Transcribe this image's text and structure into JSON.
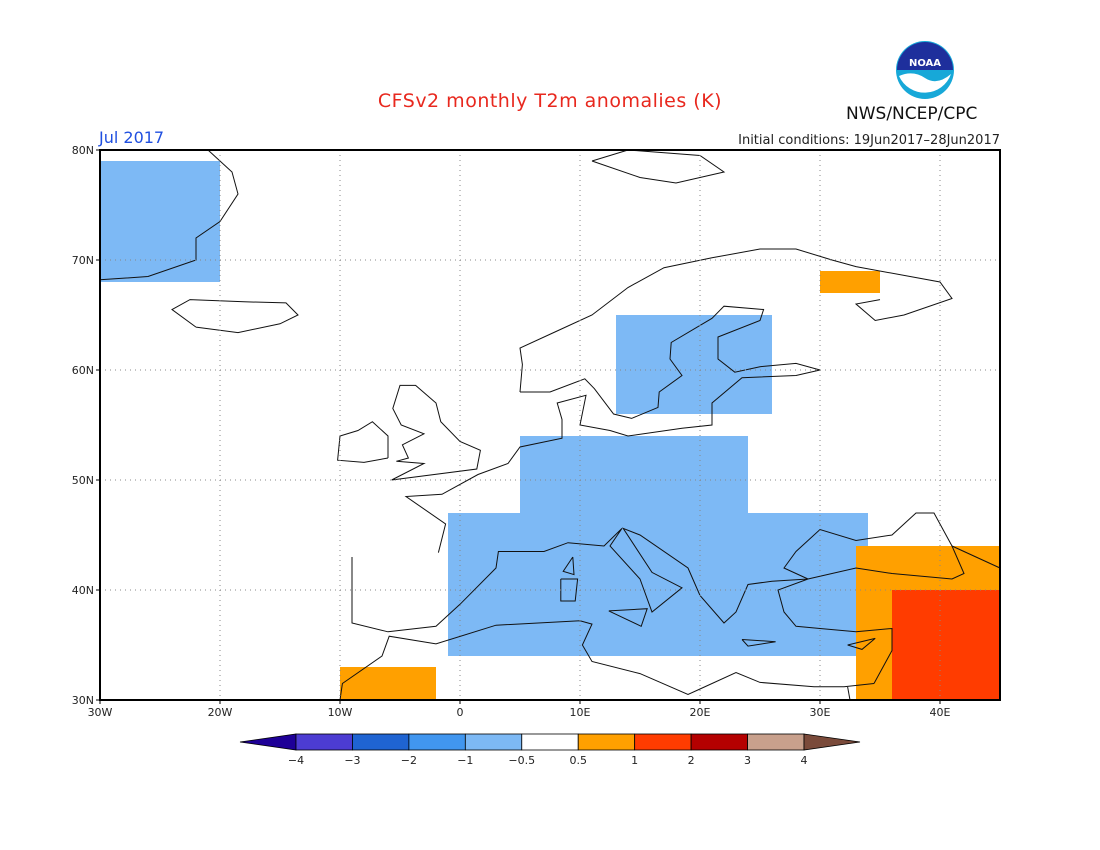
{
  "title": "CFSv2 monthly T2m anomalies (K)",
  "month_label": "Jul 2017",
  "initial_conditions": "Initial conditions: 19Jun2017–28Jun2017",
  "agency": "NWS/NCEP/CPC",
  "logo_text": "NOAA",
  "map": {
    "lon_range": [
      -30,
      45
    ],
    "lat_range": [
      30,
      80
    ],
    "lon_ticks": [
      {
        "value": -30,
        "label": "30W"
      },
      {
        "value": -20,
        "label": "20W"
      },
      {
        "value": -10,
        "label": "10W"
      },
      {
        "value": 0,
        "label": "0"
      },
      {
        "value": 10,
        "label": "10E"
      },
      {
        "value": 20,
        "label": "20E"
      },
      {
        "value": 30,
        "label": "30E"
      },
      {
        "value": 40,
        "label": "40E"
      }
    ],
    "lat_ticks": [
      {
        "value": 30,
        "label": "30N"
      },
      {
        "value": 40,
        "label": "40N"
      },
      {
        "value": 50,
        "label": "50N"
      },
      {
        "value": 60,
        "label": "60N"
      },
      {
        "value": 70,
        "label": "70N"
      },
      {
        "value": 80,
        "label": "80N"
      }
    ],
    "gridlines": "dotted"
  },
  "colorbar": {
    "labels": [
      "−4",
      "−3",
      "−2",
      "−1",
      "−0.5",
      "0.5",
      "1",
      "2",
      "3",
      "4"
    ],
    "colors": [
      "#1e0097",
      "#4c3cd2",
      "#1f64d2",
      "#4196ef",
      "#7db9f5",
      "#ffffff",
      "#ffa000",
      "#ff3c00",
      "#b40000",
      "#c8a08c",
      "#7a4a3a"
    ]
  },
  "anomaly_regions": [
    {
      "class": -1,
      "color": "#7db9f5",
      "lon": [
        -1,
        34
      ],
      "lat": [
        34,
        47
      ],
      "desc": "central/southern Europe & Mediterranean"
    },
    {
      "class": -1,
      "color": "#7db9f5",
      "lon": [
        5,
        24
      ],
      "lat": [
        45,
        54
      ],
      "desc": "central Europe"
    },
    {
      "class": -1,
      "color": "#7db9f5",
      "lon": [
        -30,
        -20
      ],
      "lat": [
        68,
        79
      ],
      "desc": "Greenland coast"
    },
    {
      "class": -1,
      "color": "#7db9f5",
      "lon": [
        13,
        26
      ],
      "lat": [
        56,
        65
      ],
      "desc": "Scandinavia"
    },
    {
      "class": 1,
      "color": "#ffa000",
      "lon": [
        33,
        45
      ],
      "lat": [
        30,
        44
      ],
      "desc": "Turkey, Middle East"
    },
    {
      "class": 1,
      "color": "#ffa000",
      "lon": [
        -10,
        -2
      ],
      "lat": [
        30,
        33
      ],
      "desc": "Morocco"
    },
    {
      "class": 1,
      "color": "#ffa000",
      "lon": [
        30,
        35
      ],
      "lat": [
        67,
        69
      ],
      "desc": "Kola"
    },
    {
      "class": 2,
      "color": "#ff3c00",
      "lon": [
        36,
        45
      ],
      "lat": [
        30,
        40
      ],
      "desc": "Iraq / eastern Turkey"
    }
  ]
}
